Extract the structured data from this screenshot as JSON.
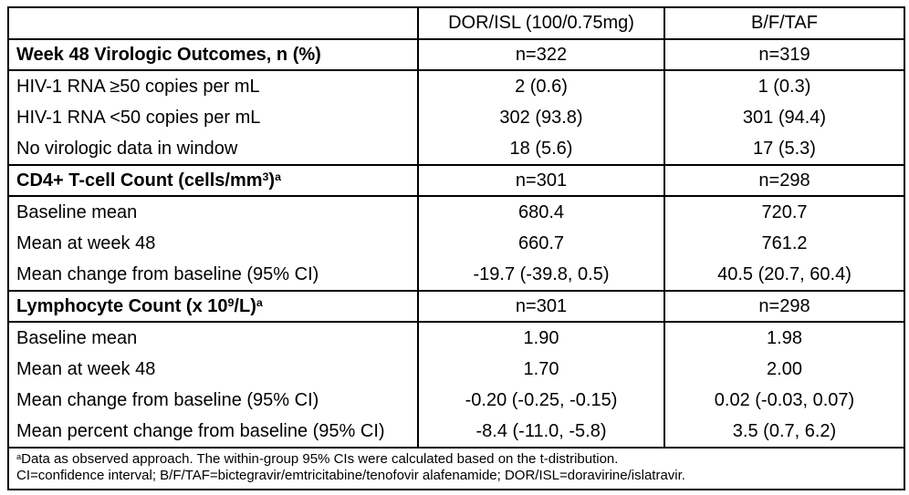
{
  "colors": {
    "border": "#000000",
    "text": "#000000",
    "background": "#ffffff"
  },
  "table": {
    "header": {
      "col0": "",
      "col1": "DOR/ISL (100/0.75mg)",
      "col2": "B/F/TAF"
    },
    "sections": [
      {
        "title": {
          "main": "Week 48 Virologic Outcomes, n (%)"
        },
        "n": {
          "col1": "n=322",
          "col2": "n=319"
        },
        "rows": [
          {
            "label": "HIV-1 RNA ≥50 copies per mL",
            "col1": "2 (0.6)",
            "col2": "1 (0.3)"
          },
          {
            "label": "HIV-1 RNA <50 copies per mL",
            "col1": "302 (93.8)",
            "col2": "301 (94.4)"
          },
          {
            "label": "No virologic data in window",
            "col1": "18 (5.6)",
            "col2": "17 (5.3)"
          }
        ]
      },
      {
        "title": {
          "main": "CD4+ T-cell Count (cells/mm",
          "sup1": "3",
          "mid": ")",
          "sup2": "a"
        },
        "n": {
          "col1": "n=301",
          "col2": "n=298"
        },
        "rows": [
          {
            "label": "Baseline mean",
            "col1": "680.4",
            "col2": "720.7"
          },
          {
            "label": "Mean at week 48",
            "col1": "660.7",
            "col2": "761.2"
          },
          {
            "label": "Mean change from baseline (95% CI)",
            "col1": "-19.7 (-39.8, 0.5)",
            "col2": "40.5 (20.7, 60.4)"
          }
        ]
      },
      {
        "title": {
          "main": "Lymphocyte Count (x 10",
          "sup1": "9",
          "mid": "/L)",
          "sup2": "a"
        },
        "n": {
          "col1": "n=301",
          "col2": "n=298"
        },
        "rows": [
          {
            "label": "Baseline mean",
            "col1": "1.90",
            "col2": "1.98"
          },
          {
            "label": "Mean at week 48",
            "col1": "1.70",
            "col2": "2.00"
          },
          {
            "label": "Mean change from baseline (95% CI)",
            "col1": "-0.20 (-0.25, -0.15)",
            "col2": "0.02 (-0.03, 0.07)"
          },
          {
            "label": "Mean percent change from baseline (95% CI)",
            "col1": "-8.4 (-11.0, -5.8)",
            "col2": "3.5 (0.7, 6.2)"
          }
        ]
      }
    ],
    "footnote": {
      "sup": "a",
      "line1": "Data as observed approach. The within-group 95% CIs were calculated based on the t-distribution.",
      "line2": "CI=confidence interval; B/F/TAF=bictegravir/emtricitabine/tenofovir alafenamide; DOR/ISL=doravirine/islatravir."
    }
  }
}
